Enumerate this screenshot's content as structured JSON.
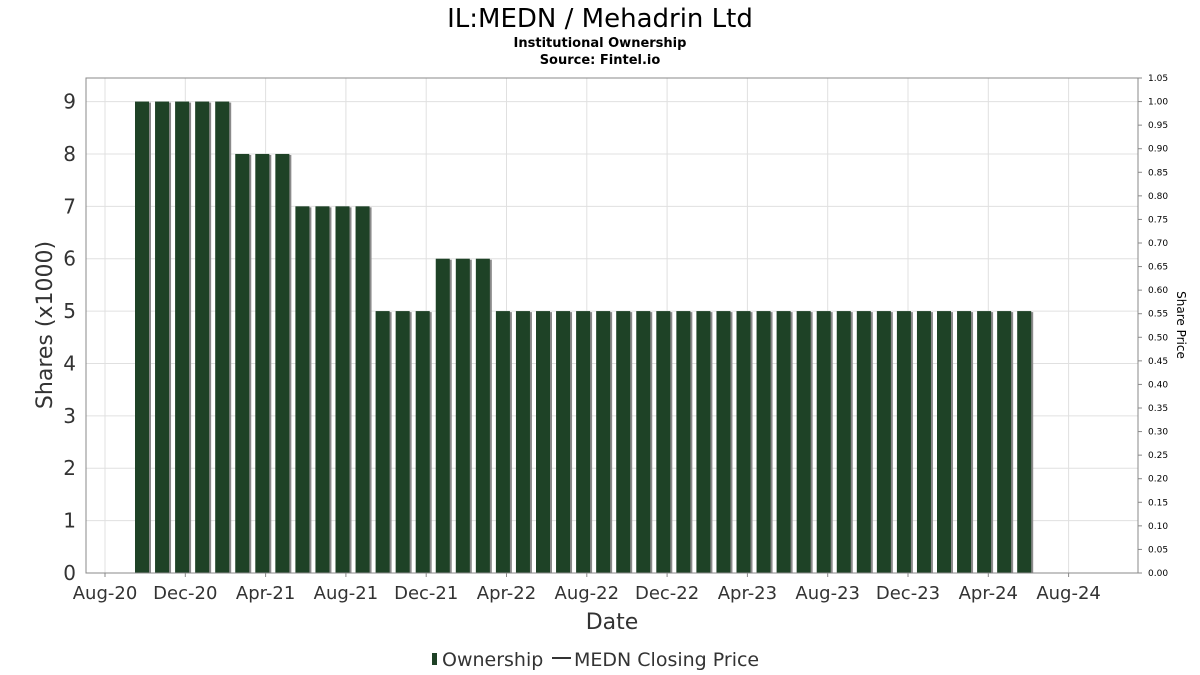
{
  "chart_data": {
    "type": "bar",
    "title": "IL:MEDN / Mehadrin Ltd",
    "subtitle": "Institutional Ownership",
    "source": "Source: Fintel.io",
    "xlabel": "Date",
    "ylabel": "Shares (x1000)",
    "ylabel_right": "Share Price",
    "ylim": [
      0,
      9.45
    ],
    "ylim_right": [
      0,
      1.05
    ],
    "yticks_left": [
      "0",
      "1",
      "2",
      "3",
      "4",
      "5",
      "6",
      "7",
      "8",
      "9"
    ],
    "yticks_right": [
      "0.00",
      "0.05",
      "0.10",
      "0.15",
      "0.20",
      "0.25",
      "0.30",
      "0.35",
      "0.40",
      "0.45",
      "0.50",
      "0.55",
      "0.60",
      "0.65",
      "0.70",
      "0.75",
      "0.80",
      "0.85",
      "0.90",
      "0.95",
      "1.00",
      "1.05"
    ],
    "xticks": [
      "Aug-20",
      "Dec-20",
      "Apr-21",
      "Aug-21",
      "Dec-21",
      "Apr-22",
      "Aug-22",
      "Dec-22",
      "Apr-23",
      "Aug-23",
      "Dec-23",
      "Apr-24",
      "Aug-24"
    ],
    "grid": true,
    "legend_position": "bottom",
    "series": [
      {
        "name": "Ownership",
        "color": "#1e4226",
        "values": [
          9,
          9,
          9,
          9,
          9,
          8,
          8,
          8,
          7,
          7,
          7,
          7,
          5,
          5,
          5,
          6,
          6,
          6,
          5,
          5,
          5,
          5,
          5,
          5,
          5,
          5,
          5,
          5,
          5,
          5,
          5,
          5,
          5,
          5,
          5,
          5,
          5,
          5,
          5,
          5,
          5,
          5,
          5,
          5,
          5
        ]
      },
      {
        "name": "MEDN Closing Price",
        "color": "#333333",
        "values": []
      }
    ]
  }
}
